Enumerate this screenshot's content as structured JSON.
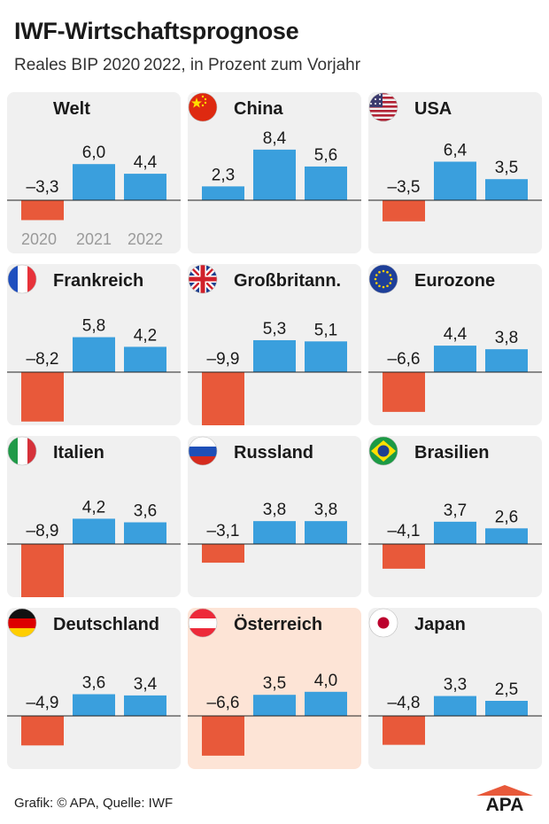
{
  "title": "IWF-Wirtschaftsprognose",
  "subtitle": "Reales BIP 2020 2022, in Prozent zum Vorjahr",
  "footer": "Grafik: © APA, Quelle: IWF",
  "logo_text": "APA",
  "colors": {
    "negative": "#e8593a",
    "positive": "#3a9fdd",
    "panel": "#f0f0f0",
    "highlight": "#fde4d6"
  },
  "chart_data": {
    "type": "bar",
    "categories": [
      "2020",
      "2021",
      "2022"
    ],
    "unit": "Prozent zum Vorjahr",
    "panels": [
      {
        "name": "Welt",
        "flag": "",
        "values": [
          -3.3,
          6.0,
          4.4
        ],
        "labels": [
          "–3,3",
          "6,0",
          "4,4"
        ],
        "show_year_labels": true
      },
      {
        "name": "China",
        "flag": "china-flag-icon",
        "values": [
          2.3,
          8.4,
          5.6
        ],
        "labels": [
          "2,3",
          "8,4",
          "5,6"
        ]
      },
      {
        "name": "USA",
        "flag": "usa-flag-icon",
        "values": [
          -3.5,
          6.4,
          3.5
        ],
        "labels": [
          "–3,5",
          "6,4",
          "3,5"
        ]
      },
      {
        "name": "Frankreich",
        "flag": "france-flag-icon",
        "values": [
          -8.2,
          5.8,
          4.2
        ],
        "labels": [
          "–8,2",
          "5,8",
          "4,2"
        ]
      },
      {
        "name": "Großbritann.",
        "flag": "uk-flag-icon",
        "values": [
          -9.9,
          5.3,
          5.1
        ],
        "labels": [
          "–9,9",
          "5,3",
          "5,1"
        ]
      },
      {
        "name": "Eurozone",
        "flag": "eu-flag-icon",
        "values": [
          -6.6,
          4.4,
          3.8
        ],
        "labels": [
          "–6,6",
          "4,4",
          "3,8"
        ]
      },
      {
        "name": "Italien",
        "flag": "italy-flag-icon",
        "values": [
          -8.9,
          4.2,
          3.6
        ],
        "labels": [
          "–8,9",
          "4,2",
          "3,6"
        ]
      },
      {
        "name": "Russland",
        "flag": "russia-flag-icon",
        "values": [
          -3.1,
          3.8,
          3.8
        ],
        "labels": [
          "–3,1",
          "3,8",
          "3,8"
        ]
      },
      {
        "name": "Brasilien",
        "flag": "brazil-flag-icon",
        "values": [
          -4.1,
          3.7,
          2.6
        ],
        "labels": [
          "–4,1",
          "3,7",
          "2,6"
        ]
      },
      {
        "name": "Deutschland",
        "flag": "germany-flag-icon",
        "values": [
          -4.9,
          3.6,
          3.4
        ],
        "labels": [
          "–4,9",
          "3,6",
          "3,4"
        ]
      },
      {
        "name": "Österreich",
        "flag": "austria-flag-icon",
        "values": [
          -6.6,
          3.5,
          4.0
        ],
        "labels": [
          "–6,6",
          "3,5",
          "4,0"
        ],
        "highlight": true
      },
      {
        "name": "Japan",
        "flag": "japan-flag-icon",
        "values": [
          -4.8,
          3.3,
          2.5
        ],
        "labels": [
          "–4,8",
          "3,3",
          "2,5"
        ]
      }
    ]
  }
}
